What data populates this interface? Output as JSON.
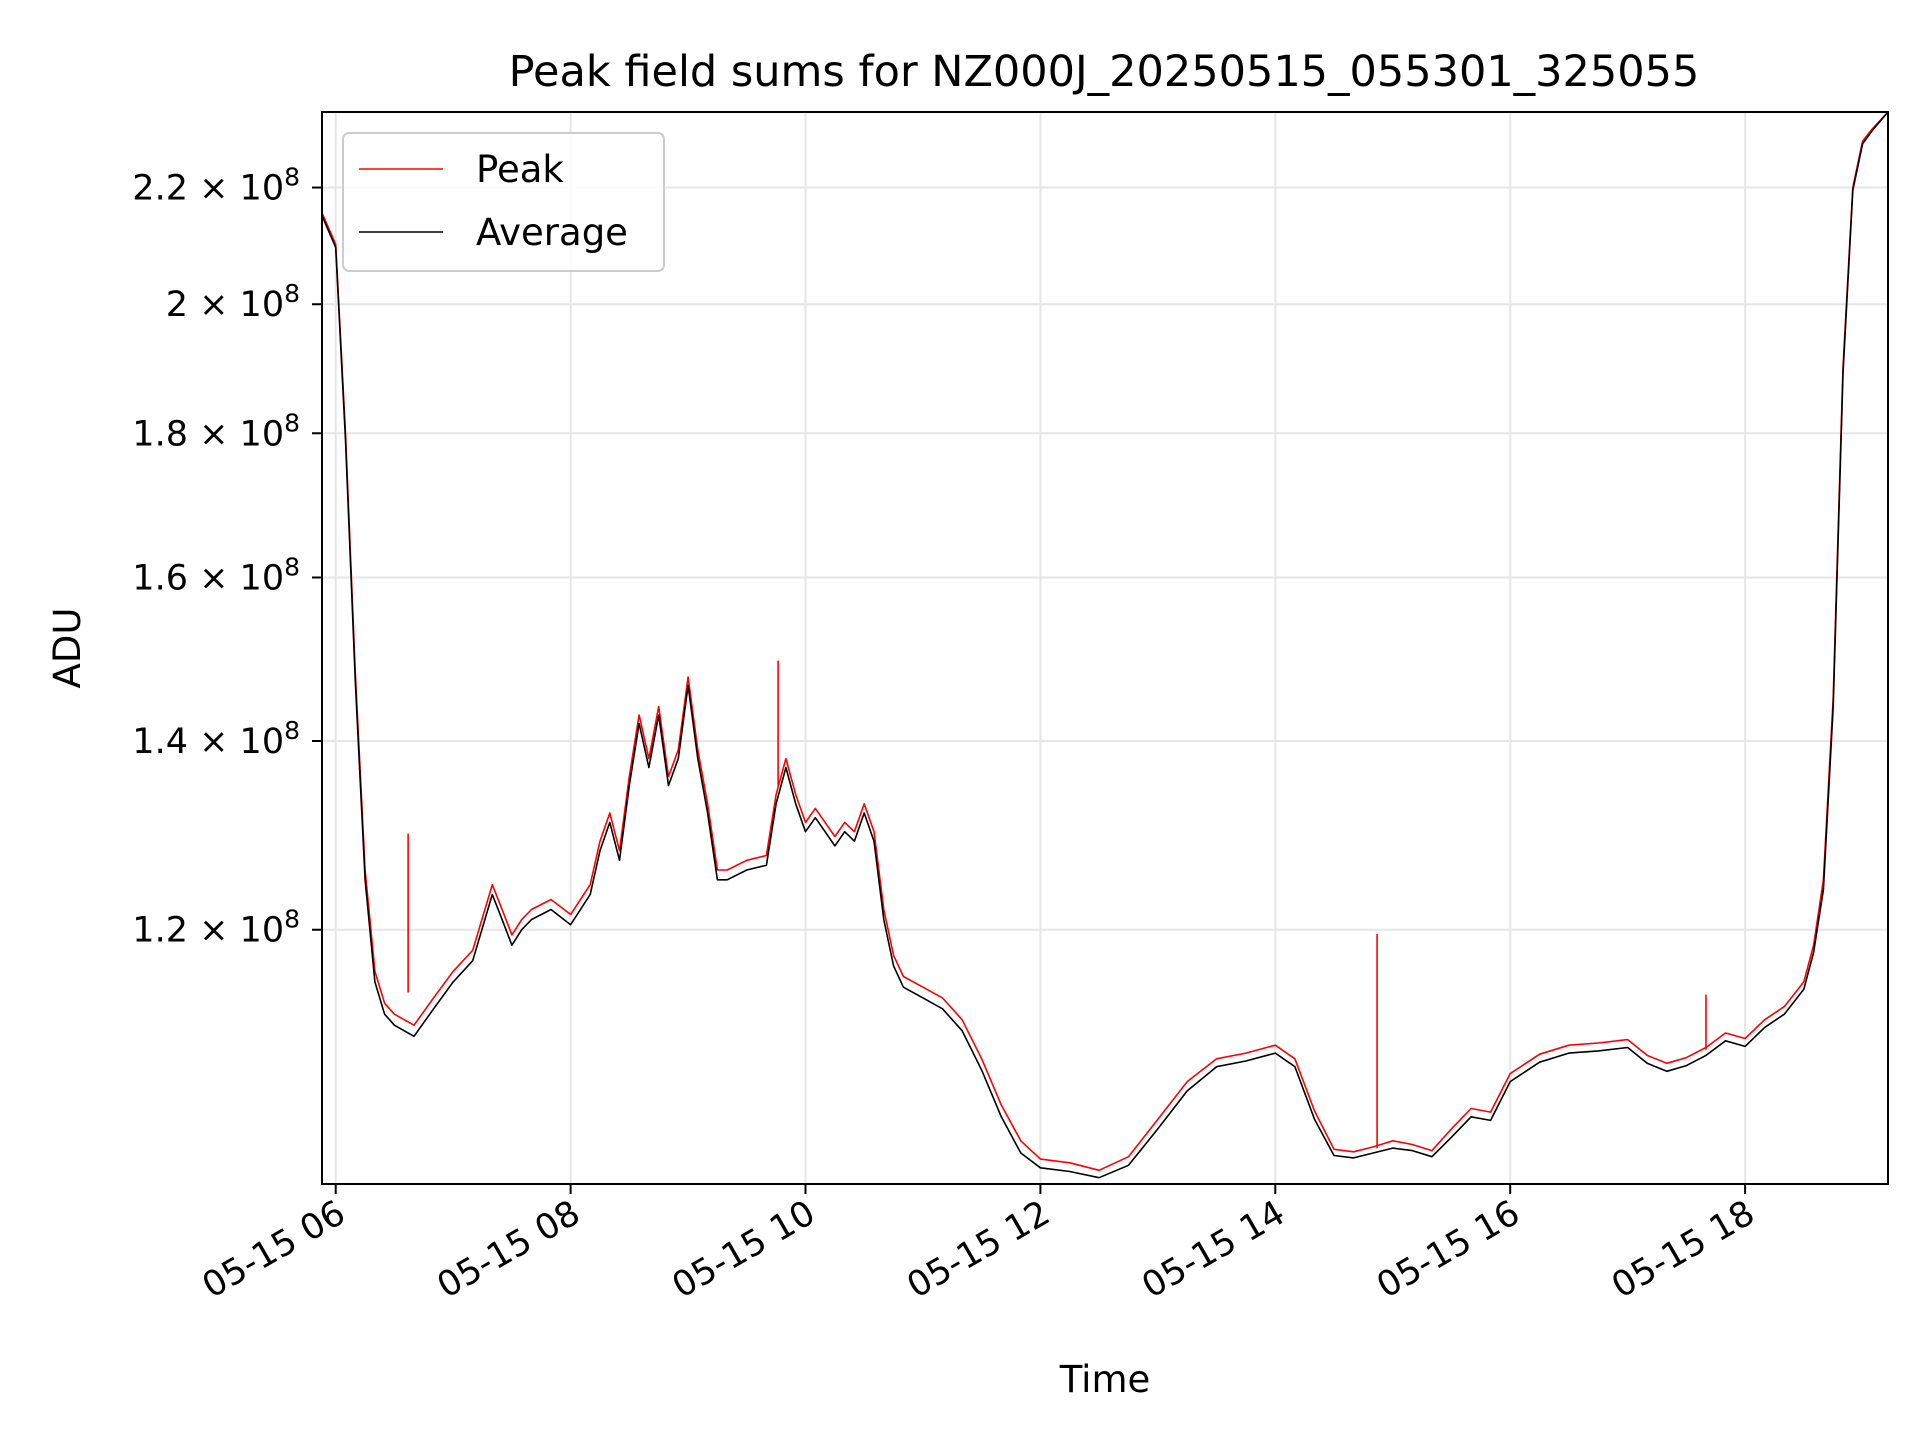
{
  "chart_data": {
    "type": "line",
    "title": "Peak field sums for NZ000J_20250515_055301_325055",
    "xlabel": "Time",
    "ylabel": "ADU",
    "y_scale": "log",
    "xlim": [
      "2025-05-15 05:53",
      "2025-05-15 19:13"
    ],
    "ylim": [
      97500000,
      234000000
    ],
    "grid": true,
    "legend_location": "upper-left",
    "x_ticks": [
      {
        "value": "2025-05-15 06:00",
        "label": "05-15 06"
      },
      {
        "value": "2025-05-15 08:00",
        "label": "05-15 08"
      },
      {
        "value": "2025-05-15 10:00",
        "label": "05-15 10"
      },
      {
        "value": "2025-05-15 12:00",
        "label": "05-15 12"
      },
      {
        "value": "2025-05-15 14:00",
        "label": "05-15 14"
      },
      {
        "value": "2025-05-15 16:00",
        "label": "05-15 16"
      },
      {
        "value": "2025-05-15 18:00",
        "label": "05-15 18"
      }
    ],
    "y_ticks": [
      {
        "value": 120000000,
        "mantissa": "1.2",
        "base": "10",
        "exponent": "8"
      },
      {
        "value": 140000000,
        "mantissa": "1.4",
        "base": "10",
        "exponent": "8"
      },
      {
        "value": 160000000,
        "mantissa": "1.6",
        "base": "10",
        "exponent": "8"
      },
      {
        "value": 180000000,
        "mantissa": "1.8",
        "base": "10",
        "exponent": "8"
      },
      {
        "value": 200000000,
        "mantissa": "2",
        "base": "10",
        "exponent": "8"
      },
      {
        "value": 220000000,
        "mantissa": "2.2",
        "base": "10",
        "exponent": "8"
      }
    ],
    "x": [
      "2025-05-15 05:53",
      "2025-05-15 06:00",
      "2025-05-15 06:05",
      "2025-05-15 06:10",
      "2025-05-15 06:15",
      "2025-05-15 06:20",
      "2025-05-15 06:25",
      "2025-05-15 06:30",
      "2025-05-15 06:40",
      "2025-05-15 06:50",
      "2025-05-15 07:00",
      "2025-05-15 07:10",
      "2025-05-15 07:20",
      "2025-05-15 07:25",
      "2025-05-15 07:30",
      "2025-05-15 07:35",
      "2025-05-15 07:40",
      "2025-05-15 07:50",
      "2025-05-15 08:00",
      "2025-05-15 08:10",
      "2025-05-15 08:15",
      "2025-05-15 08:20",
      "2025-05-15 08:25",
      "2025-05-15 08:30",
      "2025-05-15 08:35",
      "2025-05-15 08:40",
      "2025-05-15 08:45",
      "2025-05-15 08:50",
      "2025-05-15 08:55",
      "2025-05-15 09:00",
      "2025-05-15 09:05",
      "2025-05-15 09:10",
      "2025-05-15 09:15",
      "2025-05-15 09:20",
      "2025-05-15 09:30",
      "2025-05-15 09:40",
      "2025-05-15 09:45",
      "2025-05-15 09:50",
      "2025-05-15 09:55",
      "2025-05-15 10:00",
      "2025-05-15 10:05",
      "2025-05-15 10:10",
      "2025-05-15 10:15",
      "2025-05-15 10:20",
      "2025-05-15 10:25",
      "2025-05-15 10:30",
      "2025-05-15 10:35",
      "2025-05-15 10:40",
      "2025-05-15 10:45",
      "2025-05-15 10:50",
      "2025-05-15 11:00",
      "2025-05-15 11:10",
      "2025-05-15 11:20",
      "2025-05-15 11:30",
      "2025-05-15 11:40",
      "2025-05-15 11:50",
      "2025-05-15 12:00",
      "2025-05-15 12:15",
      "2025-05-15 12:30",
      "2025-05-15 12:45",
      "2025-05-15 13:00",
      "2025-05-15 13:15",
      "2025-05-15 13:30",
      "2025-05-15 13:45",
      "2025-05-15 14:00",
      "2025-05-15 14:10",
      "2025-05-15 14:20",
      "2025-05-15 14:30",
      "2025-05-15 14:40",
      "2025-05-15 14:50",
      "2025-05-15 15:00",
      "2025-05-15 15:10",
      "2025-05-15 15:20",
      "2025-05-15 15:30",
      "2025-05-15 15:40",
      "2025-05-15 15:50",
      "2025-05-15 16:00",
      "2025-05-15 16:15",
      "2025-05-15 16:30",
      "2025-05-15 16:45",
      "2025-05-15 17:00",
      "2025-05-15 17:10",
      "2025-05-15 17:20",
      "2025-05-15 17:30",
      "2025-05-15 17:40",
      "2025-05-15 17:50",
      "2025-05-15 18:00",
      "2025-05-15 18:10",
      "2025-05-15 18:20",
      "2025-05-15 18:30",
      "2025-05-15 18:35",
      "2025-05-15 18:40",
      "2025-05-15 18:45",
      "2025-05-15 18:50",
      "2025-05-15 18:55",
      "2025-05-15 19:00",
      "2025-05-15 19:05",
      "2025-05-15 19:13"
    ],
    "series": [
      {
        "name": "Peak",
        "color": "#ff0000",
        "values": [
          215500000,
          210000000,
          180000000,
          148000000,
          126000000,
          116000000,
          113000000,
          112000000,
          111000000,
          113500000,
          116000000,
          118000000,
          124500000,
          122000000,
          119500000,
          121000000,
          122000000,
          123000000,
          121500000,
          124500000,
          129000000,
          132000000,
          128000000,
          136000000,
          143000000,
          138000000,
          144000000,
          136000000,
          139000000,
          147500000,
          139000000,
          133000000,
          126000000,
          126000000,
          127000000,
          127500000,
          134000000,
          138000000,
          134000000,
          131000000,
          132500000,
          131000000,
          129500000,
          131000000,
          130000000,
          133000000,
          130000000,
          122000000,
          117500000,
          115500000,
          114500000,
          113500000,
          111500000,
          108000000,
          104000000,
          101000000,
          99500000,
          99200000,
          98600000,
          99700000,
          102800000,
          106000000,
          108000000,
          108500000,
          109200000,
          108000000,
          103500000,
          100300000,
          100100000,
          100500000,
          101000000,
          100700000,
          100200000,
          102000000,
          103700000,
          103400000,
          106700000,
          108400000,
          109200000,
          109400000,
          109700000,
          108300000,
          107600000,
          108100000,
          109000000,
          110300000,
          109800000,
          111500000,
          112700000,
          115000000,
          118500000,
          125000000,
          145000000,
          190000000,
          220000000,
          228500000,
          230800000,
          234000000
        ]
      },
      {
        "name": "Average",
        "color": "#000000",
        "values": [
          215000000,
          209500000,
          179000000,
          147000000,
          125000000,
          115000000,
          112000000,
          111000000,
          110000000,
          112500000,
          115000000,
          117000000,
          123500000,
          121000000,
          118500000,
          120000000,
          121000000,
          122000000,
          120500000,
          123500000,
          128000000,
          131000000,
          127000000,
          135000000,
          142000000,
          137000000,
          143000000,
          135000000,
          138000000,
          146500000,
          138000000,
          132000000,
          125000000,
          125000000,
          126000000,
          126500000,
          133000000,
          137000000,
          133000000,
          130000000,
          131500000,
          130000000,
          128500000,
          130000000,
          129000000,
          132000000,
          129000000,
          121000000,
          116500000,
          114500000,
          113500000,
          112500000,
          110500000,
          107000000,
          103000000,
          100000000,
          98800000,
          98500000,
          98000000,
          99000000,
          102000000,
          105200000,
          107300000,
          107800000,
          108500000,
          107300000,
          102800000,
          99800000,
          99600000,
          100000000,
          100400000,
          100200000,
          99700000,
          101300000,
          103000000,
          102700000,
          106000000,
          107700000,
          108500000,
          108700000,
          109000000,
          107600000,
          106900000,
          107400000,
          108300000,
          109600000,
          109100000,
          110800000,
          112000000,
          114300000,
          117800000,
          124000000,
          144000000,
          189000000,
          219500000,
          228000000,
          230500000,
          234000000
        ]
      }
    ],
    "spikes": [
      {
        "series": "Peak",
        "x": "2025-05-15 06:37",
        "top": 129800000,
        "base": 114000000
      },
      {
        "series": "Peak",
        "x": "2025-05-15 09:46",
        "top": 149500000,
        "base": 135000000
      },
      {
        "series": "Peak",
        "x": "2025-05-15 14:52",
        "top": 119600000,
        "base": 100400000
      },
      {
        "series": "Peak",
        "x": "2025-05-15 17:40",
        "top": 113800000,
        "base": 108800000
      }
    ]
  }
}
